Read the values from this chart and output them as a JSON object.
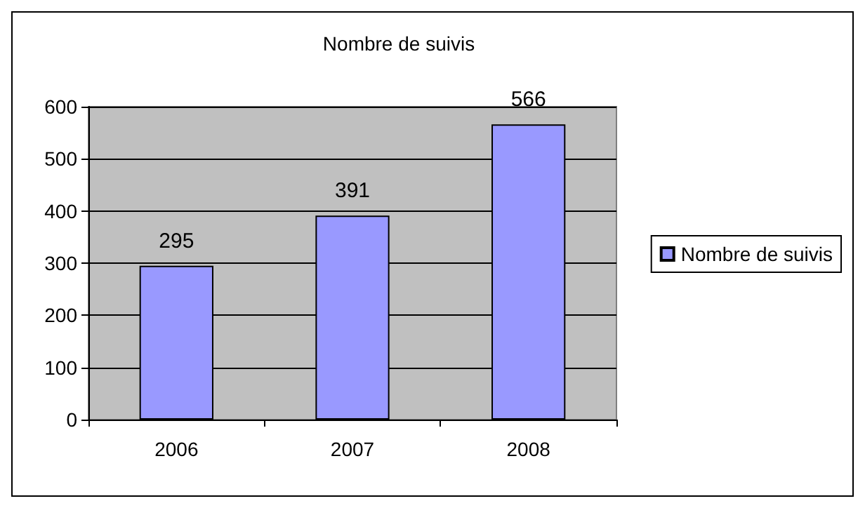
{
  "chart_data": {
    "type": "bar",
    "title": "Nombre de suivis",
    "categories": [
      "2006",
      "2007",
      "2008"
    ],
    "series": [
      {
        "name": "Nombre de suivis",
        "color": "#9999ff",
        "values": [
          295,
          391,
          566
        ]
      }
    ],
    "ylim": [
      0,
      600
    ],
    "yticks": [
      0,
      100,
      200,
      300,
      400,
      500,
      600
    ],
    "grid": "y",
    "legend": "right",
    "data_labels": true
  }
}
